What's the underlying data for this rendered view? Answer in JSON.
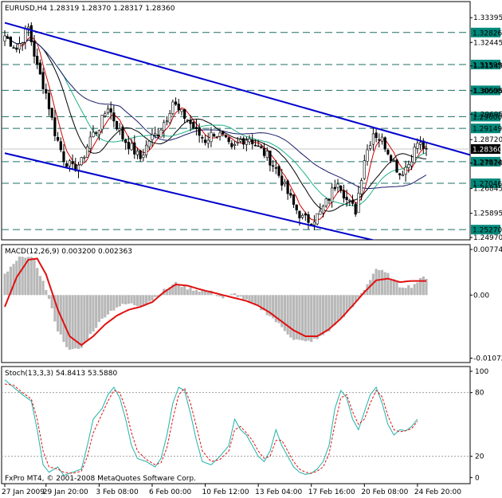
{
  "colors": {
    "background": "#ffffff",
    "frame": "#000000",
    "candle_up": "#ffffff",
    "candle_down": "#000000",
    "trendline": "#0000cd",
    "level_line": "#1f6f63",
    "level_tag": "#00897b",
    "ma_fast": "#d40000",
    "ma_mid": "#20b28a",
    "ma_slow": "#000000",
    "ma_long": "#1b1b6b",
    "macd_hist": "#b8b8b8",
    "macd_signal": "#e01010",
    "stoch_main": "#20b2aa",
    "stoch_signal": "#e01010",
    "price_tag_bg": "#000000",
    "price_tag_text": "#ffffff"
  },
  "chart_data": [
    {
      "type": "candlestick",
      "title": "EURUSD,H4  1.28319 1.28370 1.28317 1.28360",
      "ylim": [
        1.2497,
        1.3395
      ],
      "ticks": [
        "1.33395",
        "1.32445",
        "1.31545",
        "1.30595",
        "1.29695",
        "1.28720",
        "1.27820",
        "1.26845",
        "1.25895",
        "1.24970"
      ],
      "tick_values": [
        1.33395,
        1.32445,
        1.31545,
        1.30595,
        1.29695,
        1.2872,
        1.2782,
        1.26845,
        1.25895,
        1.2497
      ],
      "levels": [
        {
          "label": "1.32826",
          "value": 1.32826
        },
        {
          "label": "1.31599",
          "value": 1.31599
        },
        {
          "label": "1.30608",
          "value": 1.30608
        },
        {
          "label": "1.29600",
          "value": 1.296
        },
        {
          "label": "1.29149",
          "value": 1.29149
        },
        {
          "label": "1.27874",
          "value": 1.27874
        },
        {
          "label": "1.27046",
          "value": 1.27046
        },
        {
          "label": "1.25270",
          "value": 1.2527
        }
      ],
      "current_price": {
        "label": "1.28360",
        "value": 1.2836
      },
      "trendlines": [
        {
          "from": [
            0,
            1.332
          ],
          "to": [
            148,
            1.2845
          ]
        },
        {
          "from": [
            0,
            1.282
          ],
          "to": [
            120,
            1.25
          ]
        }
      ],
      "ohlc_anchors": [
        [
          0,
          1.327
        ],
        [
          4,
          1.322
        ],
        [
          8,
          1.33
        ],
        [
          11,
          1.315
        ],
        [
          14,
          1.305
        ],
        [
          17,
          1.29
        ],
        [
          20,
          1.28
        ],
        [
          23,
          1.276
        ],
        [
          26,
          1.2785
        ],
        [
          29,
          1.288
        ],
        [
          32,
          1.292
        ],
        [
          35,
          1.3
        ],
        [
          37,
          1.295
        ],
        [
          40,
          1.288
        ],
        [
          43,
          1.284
        ],
        [
          46,
          1.28
        ],
        [
          49,
          1.287
        ],
        [
          52,
          1.29
        ],
        [
          55,
          1.296
        ],
        [
          57,
          1.302
        ],
        [
          59,
          1.298
        ],
        [
          62,
          1.295
        ],
        [
          65,
          1.29
        ],
        [
          68,
          1.287
        ],
        [
          71,
          1.29
        ],
        [
          74,
          1.288
        ],
        [
          77,
          1.283
        ],
        [
          80,
          1.287
        ],
        [
          83,
          1.288
        ],
        [
          86,
          1.284
        ],
        [
          89,
          1.281
        ],
        [
          92,
          1.276
        ],
        [
          95,
          1.269
        ],
        [
          98,
          1.262
        ],
        [
          101,
          1.257
        ],
        [
          104,
          1.256
        ],
        [
          107,
          1.259
        ],
        [
          110,
          1.265
        ],
        [
          113,
          1.272
        ],
        [
          116,
          1.264
        ],
        [
          119,
          1.26
        ],
        [
          122,
          1.28
        ],
        [
          125,
          1.29
        ],
        [
          128,
          1.287
        ],
        [
          131,
          1.281
        ],
        [
          134,
          1.274
        ],
        [
          137,
          1.278
        ],
        [
          140,
          1.286
        ],
        [
          143,
          1.2836
        ]
      ]
    },
    {
      "type": "line",
      "title": "MACD(12,26,9) 0.003200 0.002363",
      "ylim": [
        -0.0112,
        0.0083
      ],
      "ticks": [
        "0.007746",
        "0.00",
        "-0.010723"
      ],
      "tick_values": [
        0.007746,
        0.0,
        -0.010723
      ],
      "histogram_anchors": [
        [
          0,
          0.0035
        ],
        [
          6,
          0.0068
        ],
        [
          10,
          0.006
        ],
        [
          14,
          0.001
        ],
        [
          18,
          -0.006
        ],
        [
          22,
          -0.0095
        ],
        [
          26,
          -0.009
        ],
        [
          30,
          -0.006
        ],
        [
          34,
          -0.0035
        ],
        [
          38,
          -0.002
        ],
        [
          42,
          -0.0015
        ],
        [
          46,
          -0.0018
        ],
        [
          50,
          -0.0008
        ],
        [
          54,
          0.0008
        ],
        [
          58,
          0.002
        ],
        [
          62,
          0.0012
        ],
        [
          66,
          0.0008
        ],
        [
          70,
          0.0005
        ],
        [
          74,
          -0.0005
        ],
        [
          78,
          0.0002
        ],
        [
          82,
          -0.001
        ],
        [
          86,
          -0.002
        ],
        [
          90,
          -0.0035
        ],
        [
          94,
          -0.0055
        ],
        [
          98,
          -0.0075
        ],
        [
          102,
          -0.008
        ],
        [
          106,
          -0.0075
        ],
        [
          110,
          -0.006
        ],
        [
          114,
          -0.004
        ],
        [
          118,
          -0.002
        ],
        [
          122,
          0.001
        ],
        [
          126,
          0.0045
        ],
        [
          130,
          0.0035
        ],
        [
          134,
          0.0015
        ],
        [
          138,
          0.0015
        ],
        [
          142,
          0.003
        ]
      ],
      "signal_anchors": [
        [
          0,
          -0.002
        ],
        [
          4,
          0.003
        ],
        [
          8,
          0.006
        ],
        [
          11,
          0.0062
        ],
        [
          14,
          0.0035
        ],
        [
          18,
          -0.0025
        ],
        [
          22,
          -0.007
        ],
        [
          26,
          -0.0085
        ],
        [
          30,
          -0.007
        ],
        [
          34,
          -0.005
        ],
        [
          38,
          -0.0035
        ],
        [
          42,
          -0.0025
        ],
        [
          46,
          -0.002
        ],
        [
          50,
          -0.0012
        ],
        [
          54,
          0.0005
        ],
        [
          58,
          0.0018
        ],
        [
          62,
          0.0016
        ],
        [
          66,
          0.001
        ],
        [
          70,
          0.0005
        ],
        [
          74,
          0.0
        ],
        [
          78,
          -0.0005
        ],
        [
          82,
          -0.001
        ],
        [
          86,
          -0.0018
        ],
        [
          90,
          -0.003
        ],
        [
          94,
          -0.0045
        ],
        [
          98,
          -0.006
        ],
        [
          102,
          -0.007
        ],
        [
          106,
          -0.007
        ],
        [
          110,
          -0.0058
        ],
        [
          114,
          -0.004
        ],
        [
          118,
          -0.0018
        ],
        [
          122,
          0.0005
        ],
        [
          126,
          0.0025
        ],
        [
          130,
          0.0028
        ],
        [
          134,
          0.0022
        ],
        [
          138,
          0.0024
        ],
        [
          142,
          0.0024
        ]
      ]
    },
    {
      "type": "line",
      "title": "Stoch(13,3,3) 54.8413 53.5880",
      "ylim": [
        -5,
        103
      ],
      "ticks": [
        "100",
        "80",
        "20",
        "0"
      ],
      "tick_values": [
        100,
        80,
        20,
        0
      ],
      "dashed_levels": [
        80,
        20
      ],
      "main_anchors": [
        [
          0,
          92
        ],
        [
          3,
          85
        ],
        [
          6,
          78
        ],
        [
          9,
          72
        ],
        [
          11,
          45
        ],
        [
          13,
          12
        ],
        [
          15,
          5
        ],
        [
          18,
          10
        ],
        [
          20,
          2
        ],
        [
          23,
          5
        ],
        [
          26,
          8
        ],
        [
          28,
          30
        ],
        [
          30,
          55
        ],
        [
          33,
          65
        ],
        [
          35,
          78
        ],
        [
          37,
          85
        ],
        [
          39,
          75
        ],
        [
          41,
          55
        ],
        [
          43,
          30
        ],
        [
          45,
          18
        ],
        [
          48,
          15
        ],
        [
          51,
          10
        ],
        [
          53,
          18
        ],
        [
          55,
          40
        ],
        [
          57,
          70
        ],
        [
          59,
          85
        ],
        [
          61,
          82
        ],
        [
          63,
          60
        ],
        [
          65,
          35
        ],
        [
          67,
          15
        ],
        [
          70,
          12
        ],
        [
          73,
          20
        ],
        [
          76,
          30
        ],
        [
          78,
          55
        ],
        [
          80,
          45
        ],
        [
          82,
          40
        ],
        [
          84,
          30
        ],
        [
          86,
          20
        ],
        [
          88,
          15
        ],
        [
          90,
          25
        ],
        [
          92,
          45
        ],
        [
          94,
          30
        ],
        [
          96,
          20
        ],
        [
          98,
          10
        ],
        [
          100,
          5
        ],
        [
          102,
          3
        ],
        [
          104,
          4
        ],
        [
          106,
          8
        ],
        [
          108,
          15
        ],
        [
          110,
          30
        ],
        [
          112,
          65
        ],
        [
          114,
          82
        ],
        [
          116,
          75
        ],
        [
          118,
          55
        ],
        [
          120,
          45
        ],
        [
          122,
          62
        ],
        [
          124,
          78
        ],
        [
          126,
          85
        ],
        [
          128,
          70
        ],
        [
          130,
          50
        ],
        [
          132,
          40
        ],
        [
          134,
          45
        ],
        [
          136,
          44
        ],
        [
          138,
          48
        ],
        [
          140,
          55
        ]
      ],
      "signal_anchors": [
        [
          0,
          88
        ],
        [
          3,
          87
        ],
        [
          6,
          80
        ],
        [
          9,
          74
        ],
        [
          11,
          55
        ],
        [
          13,
          25
        ],
        [
          15,
          10
        ],
        [
          18,
          8
        ],
        [
          20,
          5
        ],
        [
          23,
          4
        ],
        [
          26,
          6
        ],
        [
          28,
          20
        ],
        [
          30,
          42
        ],
        [
          33,
          60
        ],
        [
          35,
          72
        ],
        [
          37,
          82
        ],
        [
          39,
          80
        ],
        [
          41,
          65
        ],
        [
          43,
          42
        ],
        [
          45,
          25
        ],
        [
          48,
          17
        ],
        [
          51,
          12
        ],
        [
          53,
          14
        ],
        [
          55,
          28
        ],
        [
          57,
          55
        ],
        [
          59,
          78
        ],
        [
          61,
          84
        ],
        [
          63,
          70
        ],
        [
          65,
          48
        ],
        [
          67,
          25
        ],
        [
          70,
          15
        ],
        [
          73,
          17
        ],
        [
          76,
          25
        ],
        [
          78,
          45
        ],
        [
          80,
          48
        ],
        [
          82,
          42
        ],
        [
          84,
          35
        ],
        [
          86,
          25
        ],
        [
          88,
          18
        ],
        [
          90,
          20
        ],
        [
          92,
          35
        ],
        [
          94,
          35
        ],
        [
          96,
          25
        ],
        [
          98,
          15
        ],
        [
          100,
          8
        ],
        [
          102,
          5
        ],
        [
          104,
          4
        ],
        [
          106,
          6
        ],
        [
          108,
          10
        ],
        [
          110,
          22
        ],
        [
          112,
          50
        ],
        [
          114,
          75
        ],
        [
          116,
          78
        ],
        [
          118,
          62
        ],
        [
          120,
          50
        ],
        [
          122,
          55
        ],
        [
          124,
          70
        ],
        [
          126,
          82
        ],
        [
          128,
          76
        ],
        [
          130,
          58
        ],
        [
          132,
          45
        ],
        [
          134,
          43
        ],
        [
          136,
          44
        ],
        [
          138,
          46
        ],
        [
          140,
          53
        ]
      ]
    }
  ],
  "x_axis": {
    "labels": [
      "27 Jan 2009",
      "29 Jan 20:00",
      "3 Feb 08:00",
      "6 Feb 00:00",
      "10 Feb 12:00",
      "13 Feb 04:00",
      "17 Feb 16:00",
      "20 Feb 08:00",
      "24 Feb 20:00"
    ],
    "label_bar_index": [
      0,
      14,
      32,
      50,
      68,
      86,
      104,
      122,
      140
    ]
  },
  "footer": "FxPro MT4, © 2001-2008 MetaQuotes Software Corp."
}
